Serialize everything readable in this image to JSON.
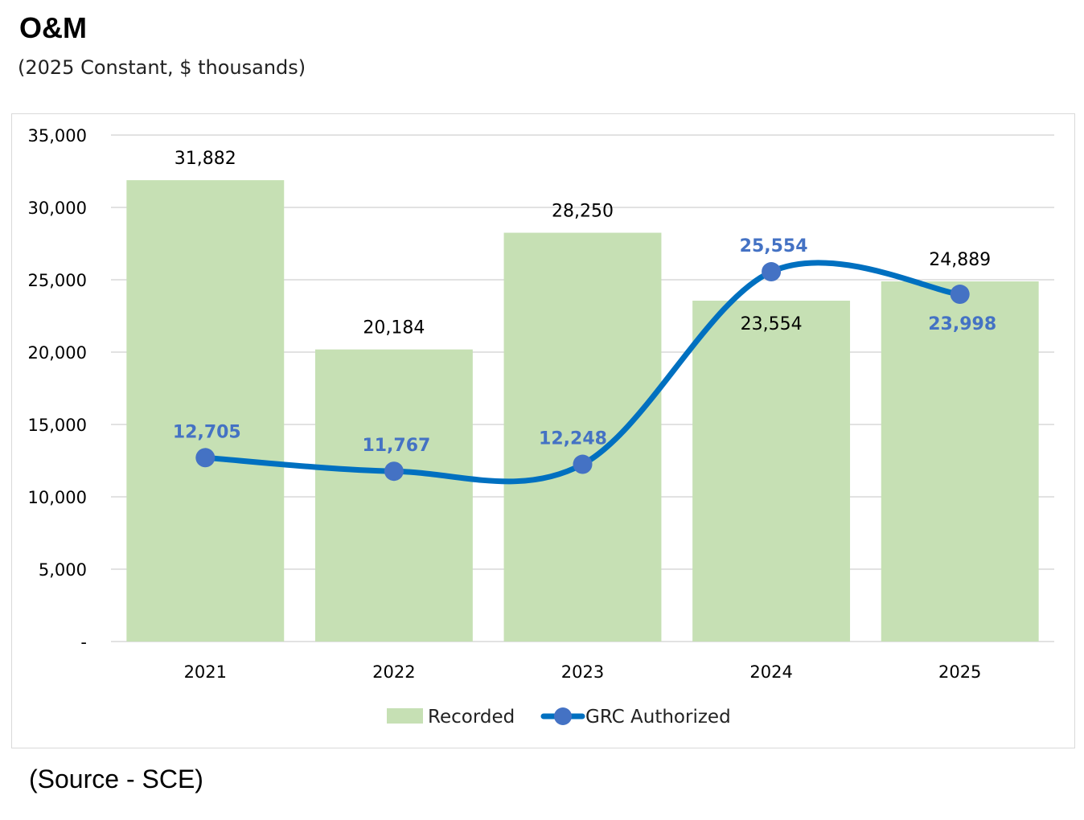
{
  "title": "O&M",
  "subtitle": "(2025 Constant, $ thousands)",
  "source": "(Source - SCE)",
  "colors": {
    "bar": "#c6e0b4",
    "line": "#0070c0",
    "marker": "#4472c4",
    "line_label": "#4472c4",
    "grid": "#d9d9d9"
  },
  "chart_data": {
    "type": "bar",
    "categories": [
      "2021",
      "2022",
      "2023",
      "2024",
      "2025"
    ],
    "series": [
      {
        "name": "Recorded",
        "type": "bar",
        "values": [
          31882,
          20184,
          28250,
          23554,
          24889
        ],
        "labels": [
          "31,882",
          "20,184",
          "28,250",
          "23,554",
          "24,889"
        ]
      },
      {
        "name": "GRC Authorized",
        "type": "line",
        "values": [
          12705,
          11767,
          12248,
          25554,
          23998
        ],
        "labels": [
          "12,705",
          "11,767",
          "12,248",
          "25,554",
          "23,998"
        ]
      }
    ],
    "ylim": [
      0,
      35000
    ],
    "yticks": [
      0,
      5000,
      10000,
      15000,
      20000,
      25000,
      30000,
      35000
    ],
    "ytick_labels": [
      "-",
      "5,000",
      "10,000",
      "15,000",
      "20,000",
      "25,000",
      "30,000",
      "35,000"
    ],
    "grid": true,
    "legend": "bottom",
    "line_smooth": true
  }
}
